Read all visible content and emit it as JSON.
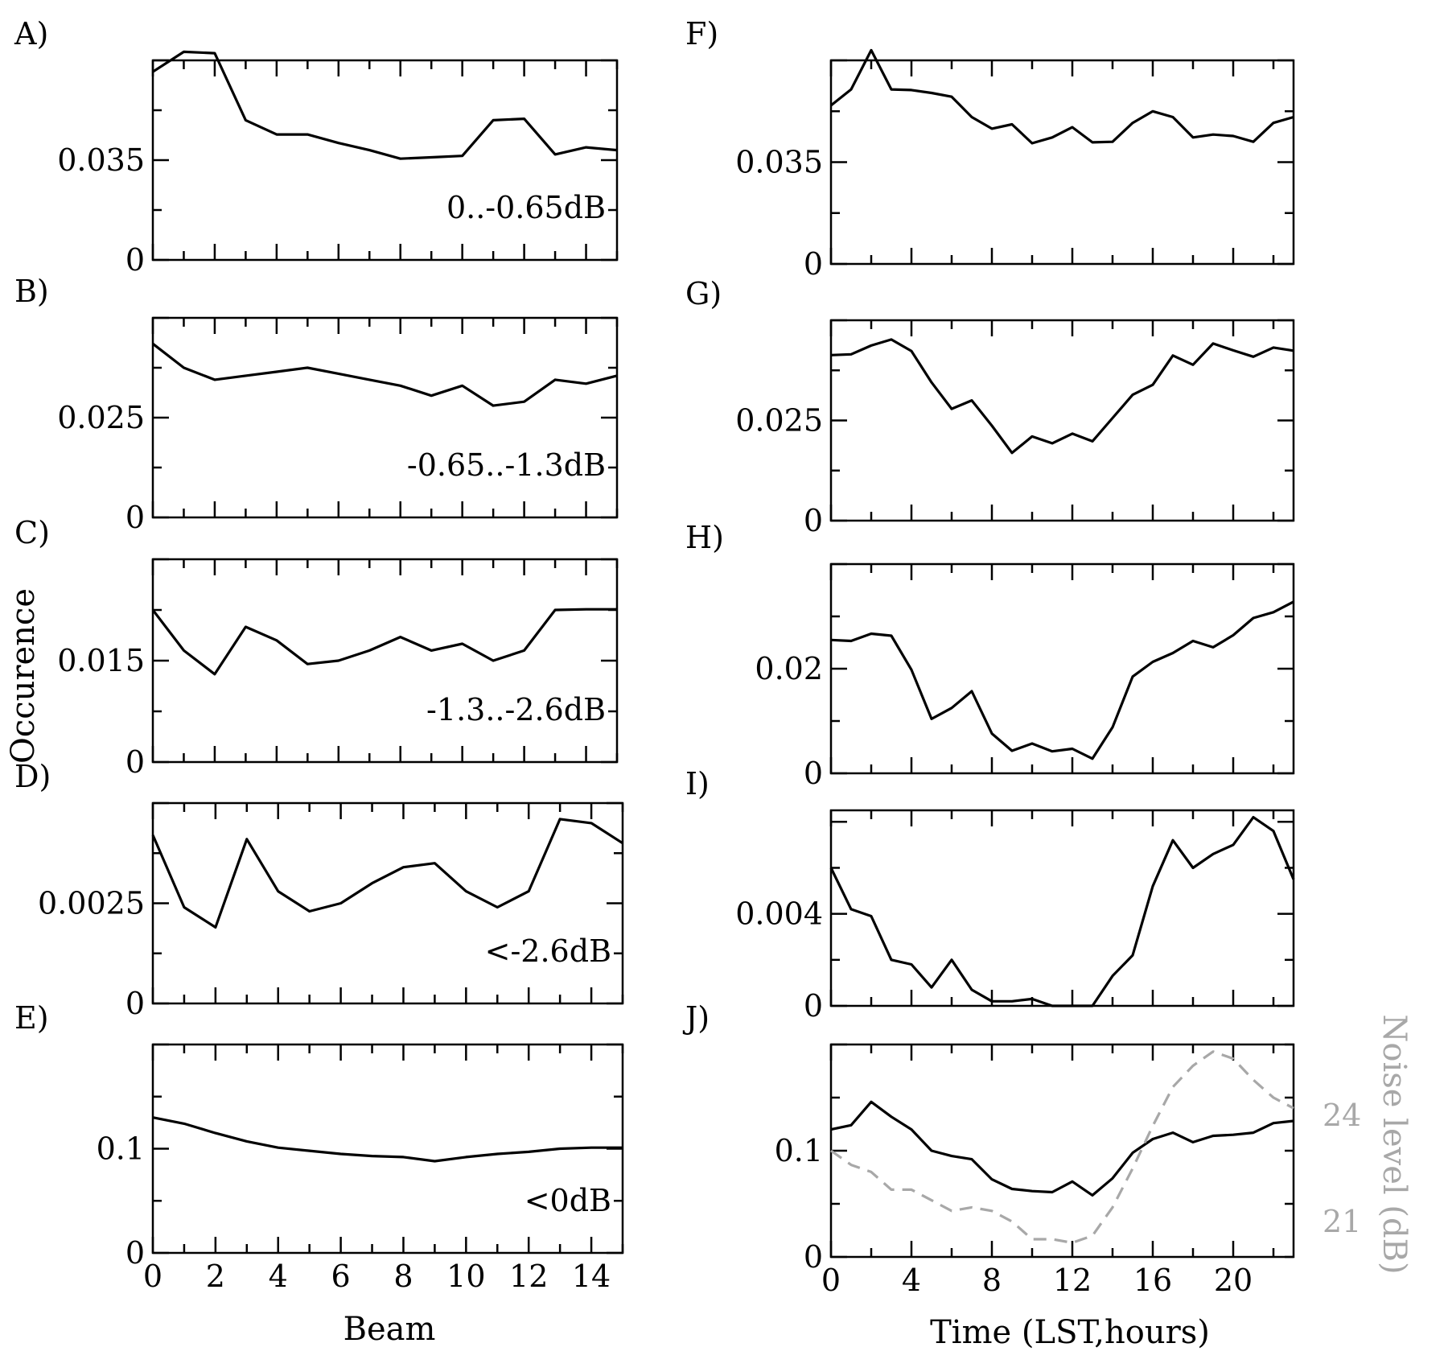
{
  "chart_data": {
    "type": "line",
    "ylabel": "Occurence",
    "columns": [
      {
        "xlabel": "Beam",
        "xlim": [
          0,
          15
        ],
        "xticks": [
          0,
          2,
          4,
          6,
          8,
          10,
          12,
          14
        ]
      },
      {
        "xlabel": "Time (LST,hours)",
        "xlim": [
          0,
          23
        ],
        "xticks": [
          0,
          4,
          8,
          12,
          16,
          20
        ]
      }
    ],
    "panels": [
      {
        "id": "A",
        "label": "A)",
        "range_label": "0..-0.65dB",
        "x": [
          0,
          1,
          2,
          3,
          4,
          5,
          6,
          7,
          8,
          9,
          10,
          11,
          12,
          13,
          14,
          15
        ],
        "values": [
          0.066,
          0.073,
          0.0725,
          0.049,
          0.044,
          0.044,
          0.041,
          0.0385,
          0.0355,
          0.036,
          0.0365,
          0.049,
          0.0495,
          0.037,
          0.0395,
          0.0385
        ],
        "ylim": [
          0,
          0.07
        ],
        "yticks": [
          0,
          0.035
        ],
        "ytick_labels": [
          "0",
          "0.035"
        ]
      },
      {
        "id": "B",
        "label": "B)",
        "range_label": "-0.65..-1.3dB",
        "x": [
          0,
          1,
          2,
          3,
          4,
          5,
          6,
          7,
          8,
          9,
          10,
          11,
          12,
          13,
          14,
          15
        ],
        "values": [
          0.0435,
          0.0375,
          0.0345,
          0.0355,
          0.0365,
          0.0375,
          0.036,
          0.0345,
          0.033,
          0.0305,
          0.033,
          0.028,
          0.029,
          0.0345,
          0.0335,
          0.0355
        ],
        "ylim": [
          0,
          0.05
        ],
        "yticks": [
          0,
          0.025
        ],
        "ytick_labels": [
          "0",
          "0.025"
        ]
      },
      {
        "id": "C",
        "label": "C)",
        "range_label": "-1.3..-2.6dB",
        "x": [
          0,
          1,
          2,
          3,
          4,
          5,
          6,
          7,
          8,
          9,
          10,
          11,
          12,
          13,
          14,
          15
        ],
        "values": [
          0.0225,
          0.0165,
          0.013,
          0.02,
          0.018,
          0.0145,
          0.015,
          0.0165,
          0.0185,
          0.0165,
          0.0175,
          0.015,
          0.0165,
          0.0225,
          0.0226,
          0.0226
        ],
        "ylim": [
          0,
          0.03
        ],
        "yticks": [
          0,
          0.015
        ],
        "ytick_labels": [
          "0",
          "0.015"
        ]
      },
      {
        "id": "D",
        "label": "D)",
        "range_label": "<-2.6dB",
        "x": [
          0,
          1,
          2,
          3,
          4,
          5,
          6,
          7,
          8,
          9,
          10,
          11,
          12,
          13,
          14,
          15
        ],
        "values": [
          0.0042,
          0.0024,
          0.0019,
          0.0041,
          0.0028,
          0.0023,
          0.0025,
          0.003,
          0.0034,
          0.0035,
          0.0028,
          0.0024,
          0.0028,
          0.0046,
          0.0045,
          0.004
        ],
        "ylim": [
          0,
          0.005
        ],
        "yticks": [
          0,
          0.0025
        ],
        "ytick_labels": [
          "0",
          "0.0025"
        ]
      },
      {
        "id": "E",
        "label": "E)",
        "range_label": "<0dB",
        "x": [
          0,
          1,
          2,
          3,
          4,
          5,
          6,
          7,
          8,
          9,
          10,
          11,
          12,
          13,
          14,
          15
        ],
        "values": [
          0.13,
          0.124,
          0.115,
          0.107,
          0.101,
          0.098,
          0.095,
          0.093,
          0.092,
          0.088,
          0.092,
          0.095,
          0.097,
          0.1,
          0.101,
          0.101
        ],
        "ylim": [
          0,
          0.2
        ],
        "yticks": [
          0,
          0.1
        ],
        "ytick_labels": [
          "0",
          "0.1"
        ]
      },
      {
        "id": "F",
        "label": "F)",
        "range_label": "",
        "x": [
          0,
          1,
          2,
          3,
          4,
          5,
          6,
          7,
          8,
          9,
          10,
          11,
          12,
          13,
          14,
          15,
          16,
          17,
          18,
          19,
          20,
          21,
          22,
          23
        ],
        "values": [
          0.0545,
          0.06,
          0.0735,
          0.06,
          0.0598,
          0.0588,
          0.0575,
          0.0505,
          0.0465,
          0.048,
          0.0415,
          0.0435,
          0.047,
          0.0418,
          0.042,
          0.0485,
          0.0525,
          0.0505,
          0.0435,
          0.0445,
          0.044,
          0.042,
          0.0485,
          0.0505
        ],
        "ylim": [
          0,
          0.07
        ],
        "yticks": [
          0,
          0.035
        ],
        "ytick_labels": [
          "0",
          "0.035"
        ]
      },
      {
        "id": "G",
        "label": "G)",
        "range_label": "",
        "x": [
          0,
          1,
          2,
          3,
          4,
          5,
          6,
          7,
          8,
          9,
          10,
          11,
          12,
          13,
          14,
          15,
          16,
          17,
          18,
          19,
          20,
          21,
          22,
          23
        ],
        "values": [
          0.0413,
          0.0415,
          0.0437,
          0.0452,
          0.0423,
          0.0345,
          0.0279,
          0.03,
          0.0237,
          0.0169,
          0.021,
          0.0193,
          0.0217,
          0.0198,
          0.0256,
          0.0314,
          0.0339,
          0.0412,
          0.0389,
          0.0442,
          0.0425,
          0.0409,
          0.0432,
          0.0424
        ],
        "ylim": [
          0,
          0.05
        ],
        "yticks": [
          0,
          0.025
        ],
        "ytick_labels": [
          "0",
          "0.025"
        ]
      },
      {
        "id": "H",
        "label": "H)",
        "range_label": "",
        "x": [
          0,
          1,
          2,
          3,
          4,
          5,
          6,
          7,
          8,
          9,
          10,
          11,
          12,
          13,
          14,
          15,
          16,
          17,
          18,
          19,
          20,
          21,
          22,
          23
        ],
        "values": [
          0.0255,
          0.0253,
          0.0267,
          0.0263,
          0.0198,
          0.0104,
          0.0125,
          0.0157,
          0.0076,
          0.0043,
          0.0057,
          0.0042,
          0.0047,
          0.0028,
          0.0088,
          0.0185,
          0.0213,
          0.023,
          0.0253,
          0.0241,
          0.0264,
          0.0297,
          0.0308,
          0.0328
        ],
        "ylim": [
          0,
          0.04
        ],
        "yticks": [
          0,
          0.02
        ],
        "ytick_labels": [
          "0",
          "0.02"
        ]
      },
      {
        "id": "I",
        "label": "I)",
        "range_label": "",
        "x": [
          0,
          1,
          2,
          3,
          4,
          5,
          6,
          7,
          8,
          9,
          10,
          11,
          12,
          13,
          14,
          15,
          16,
          17,
          18,
          19,
          20,
          21,
          22,
          23
        ],
        "values": [
          0.006,
          0.0042,
          0.0039,
          0.002,
          0.0018,
          0.0008,
          0.002,
          0.0007,
          0.0002,
          0.0002,
          0.0003,
          0.0,
          0.0,
          0.0,
          0.0013,
          0.0022,
          0.0052,
          0.0072,
          0.006,
          0.0066,
          0.007,
          0.0082,
          0.0076,
          0.0055
        ],
        "ylim": [
          0,
          0.0085
        ],
        "yticks": [
          0,
          0.004
        ],
        "ytick_labels": [
          "0",
          "0.004"
        ]
      },
      {
        "id": "J",
        "label": "J)",
        "range_label": "",
        "x": [
          0,
          1,
          2,
          3,
          4,
          5,
          6,
          7,
          8,
          9,
          10,
          11,
          12,
          13,
          14,
          15,
          16,
          17,
          18,
          19,
          20,
          21,
          22,
          23
        ],
        "values": [
          0.12,
          0.124,
          0.146,
          0.132,
          0.12,
          0.1,
          0.095,
          0.092,
          0.073,
          0.064,
          0.062,
          0.061,
          0.071,
          0.058,
          0.074,
          0.098,
          0.111,
          0.117,
          0.108,
          0.114,
          0.115,
          0.117,
          0.126,
          0.128
        ],
        "ylim": [
          0,
          0.2
        ],
        "yticks": [
          0,
          0.1
        ],
        "ytick_labels": [
          "0",
          "0.1"
        ],
        "secondary": {
          "name": "Noise level (dB)",
          "label": "Noise level (dB)",
          "color": "#a8a8a8",
          "style": "dashed",
          "x": [
            0,
            1,
            2,
            3,
            4,
            5,
            6,
            7,
            8,
            9,
            10,
            11,
            12,
            13,
            14,
            15,
            16,
            17,
            18,
            19,
            20,
            21,
            22,
            23
          ],
          "values": [
            23.0,
            22.6,
            22.4,
            21.9,
            21.9,
            21.6,
            21.3,
            21.4,
            21.3,
            21.0,
            20.5,
            20.5,
            20.4,
            20.6,
            21.4,
            22.5,
            23.7,
            24.8,
            25.4,
            25.8,
            25.6,
            25.0,
            24.5,
            24.2
          ],
          "ylim": [
            20.0,
            26.0
          ],
          "yticks": [
            21,
            24
          ],
          "ytick_labels": [
            "21",
            "24"
          ]
        }
      }
    ]
  }
}
